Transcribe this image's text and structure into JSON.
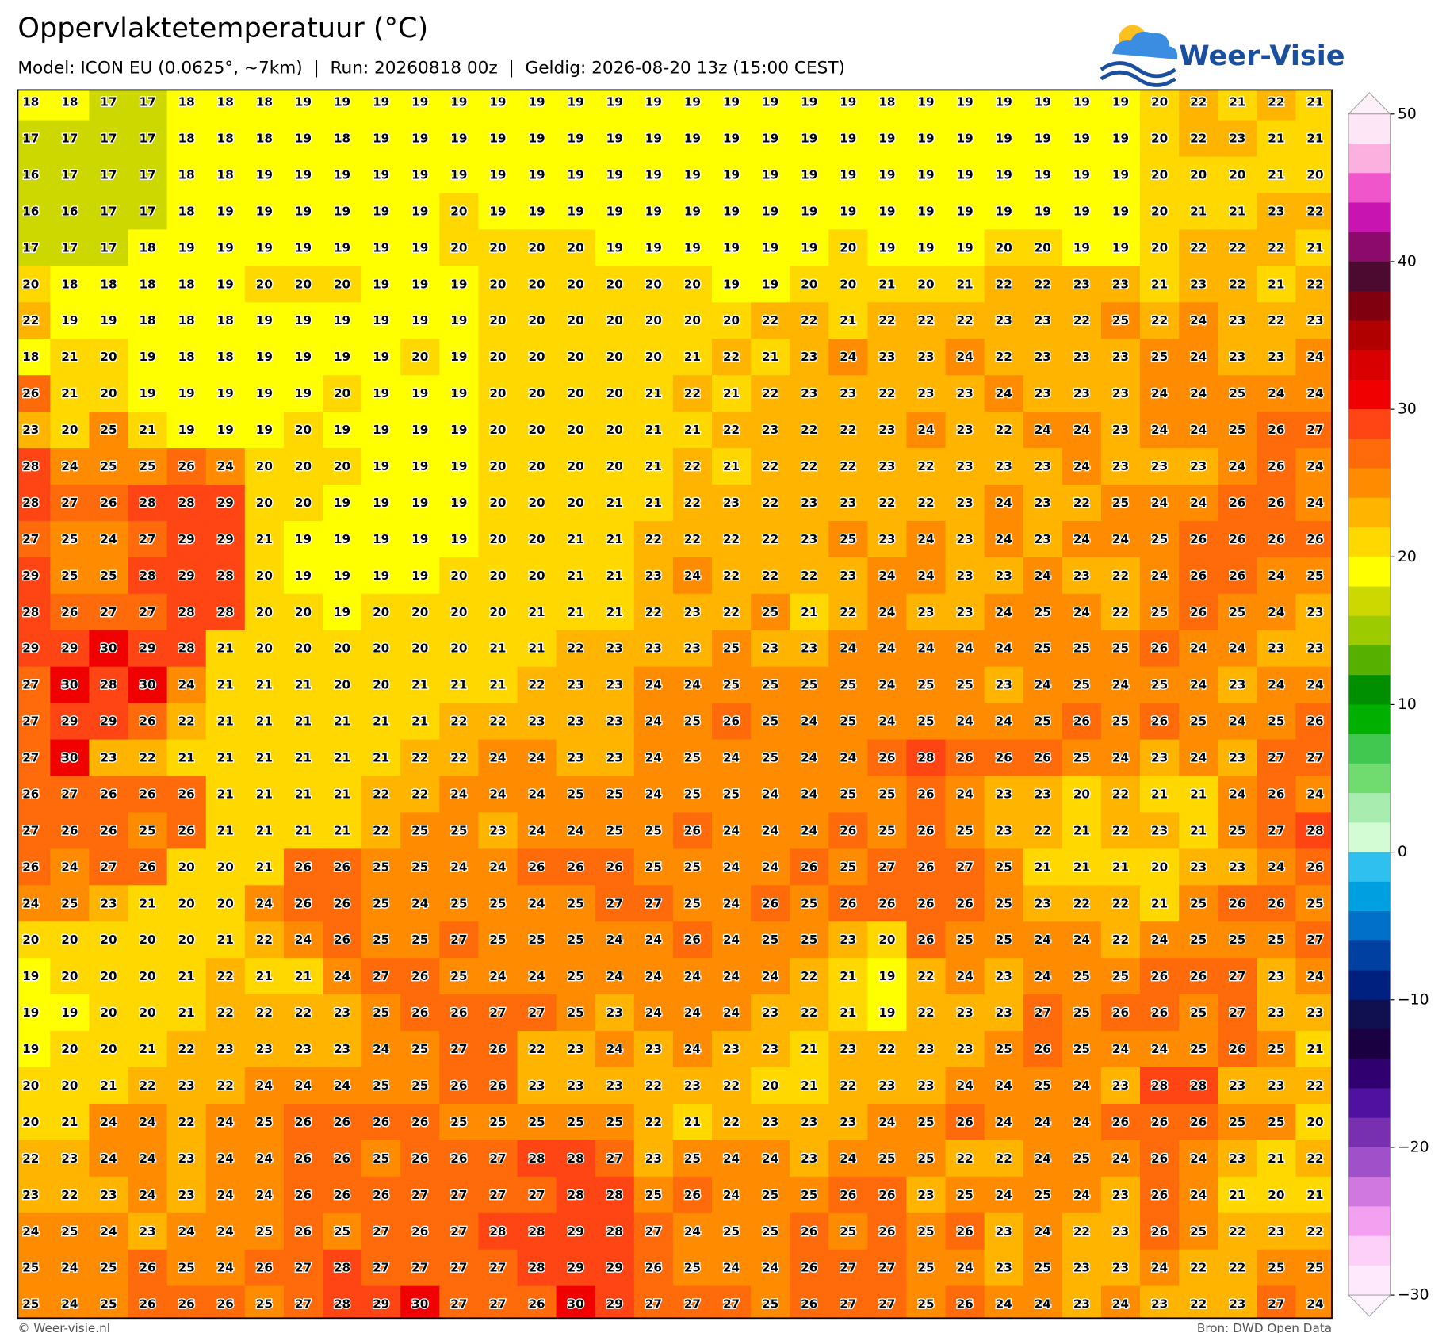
{
  "header": {
    "title": "Oppervlaktetemperatuur (°C)",
    "subtitle": "Model: ICON EU (0.0625°, ~7km)  |  Run: 20260818 00z  |  Geldig: 2026-08-20 13z (15:00 CEST)",
    "logo": "Weer-Visie"
  },
  "grid": {
    "rows": [
      [
        18,
        18,
        17,
        17,
        18,
        18,
        18,
        19,
        19,
        19,
        19,
        19,
        19,
        19,
        19,
        19,
        19,
        19,
        19,
        19,
        19,
        19,
        18,
        19,
        19,
        19,
        19,
        19,
        19,
        20,
        22,
        21,
        22,
        21
      ],
      [
        17,
        17,
        17,
        17,
        18,
        18,
        18,
        19,
        18,
        19,
        19,
        19,
        19,
        19,
        19,
        19,
        19,
        19,
        19,
        19,
        19,
        19,
        19,
        19,
        19,
        19,
        19,
        19,
        19,
        20,
        22,
        23,
        21,
        21
      ],
      [
        16,
        17,
        17,
        17,
        18,
        18,
        19,
        19,
        19,
        19,
        19,
        19,
        19,
        19,
        19,
        19,
        19,
        19,
        19,
        19,
        19,
        19,
        19,
        19,
        19,
        19,
        19,
        19,
        19,
        20,
        20,
        20,
        21,
        20
      ],
      [
        16,
        16,
        17,
        17,
        18,
        19,
        19,
        19,
        19,
        19,
        19,
        20,
        19,
        19,
        19,
        19,
        19,
        19,
        19,
        19,
        19,
        19,
        19,
        19,
        19,
        19,
        19,
        19,
        19,
        20,
        21,
        21,
        23,
        22
      ],
      [
        17,
        17,
        17,
        18,
        19,
        19,
        19,
        19,
        19,
        19,
        19,
        20,
        20,
        20,
        20,
        19,
        19,
        19,
        19,
        19,
        19,
        20,
        19,
        19,
        19,
        20,
        20,
        19,
        19,
        20,
        22,
        22,
        22,
        21
      ],
      [
        20,
        18,
        18,
        18,
        18,
        19,
        20,
        20,
        20,
        19,
        19,
        19,
        20,
        20,
        20,
        20,
        20,
        20,
        19,
        19,
        20,
        20,
        21,
        20,
        21,
        22,
        22,
        23,
        23,
        21,
        23,
        22,
        21,
        22
      ],
      [
        22,
        19,
        19,
        18,
        18,
        18,
        19,
        19,
        19,
        19,
        19,
        19,
        20,
        20,
        20,
        20,
        20,
        20,
        20,
        22,
        22,
        21,
        22,
        22,
        22,
        23,
        23,
        22,
        25,
        22,
        24,
        23,
        22,
        23
      ],
      [
        18,
        21,
        20,
        19,
        18,
        18,
        19,
        19,
        19,
        19,
        20,
        19,
        20,
        20,
        20,
        20,
        20,
        21,
        22,
        21,
        23,
        24,
        23,
        23,
        24,
        22,
        23,
        23,
        23,
        25,
        24,
        23,
        23,
        24
      ],
      [
        26,
        21,
        20,
        19,
        19,
        19,
        19,
        19,
        20,
        19,
        19,
        19,
        20,
        20,
        20,
        20,
        21,
        22,
        21,
        22,
        23,
        23,
        22,
        23,
        23,
        24,
        23,
        23,
        23,
        24,
        24,
        25,
        24,
        24
      ],
      [
        23,
        20,
        25,
        21,
        19,
        19,
        19,
        20,
        19,
        19,
        19,
        19,
        20,
        20,
        20,
        20,
        21,
        21,
        22,
        23,
        22,
        22,
        23,
        24,
        23,
        22,
        24,
        24,
        23,
        24,
        24,
        25,
        26,
        27
      ],
      [
        28,
        24,
        25,
        25,
        26,
        24,
        20,
        20,
        20,
        19,
        19,
        19,
        20,
        20,
        20,
        20,
        21,
        22,
        21,
        22,
        22,
        22,
        23,
        22,
        23,
        23,
        23,
        24,
        23,
        23,
        23,
        24,
        26,
        24
      ],
      [
        28,
        27,
        26,
        28,
        28,
        29,
        20,
        20,
        19,
        19,
        19,
        19,
        20,
        20,
        20,
        21,
        21,
        22,
        23,
        22,
        23,
        23,
        22,
        22,
        23,
        24,
        23,
        22,
        25,
        24,
        24,
        26,
        26,
        24
      ],
      [
        27,
        25,
        24,
        27,
        29,
        29,
        21,
        19,
        19,
        19,
        19,
        19,
        20,
        20,
        21,
        21,
        22,
        22,
        22,
        22,
        23,
        25,
        23,
        24,
        23,
        24,
        23,
        24,
        24,
        25,
        26,
        26,
        26,
        26
      ],
      [
        29,
        25,
        25,
        28,
        29,
        28,
        20,
        19,
        19,
        19,
        19,
        20,
        20,
        20,
        21,
        21,
        23,
        24,
        22,
        22,
        22,
        23,
        24,
        24,
        23,
        23,
        24,
        23,
        22,
        24,
        26,
        26,
        24,
        25
      ],
      [
        28,
        26,
        27,
        27,
        28,
        28,
        20,
        20,
        19,
        20,
        20,
        20,
        20,
        21,
        21,
        21,
        22,
        23,
        22,
        25,
        21,
        22,
        24,
        23,
        23,
        24,
        25,
        24,
        22,
        25,
        26,
        25,
        24,
        23
      ],
      [
        29,
        29,
        30,
        29,
        28,
        21,
        20,
        20,
        20,
        20,
        20,
        20,
        21,
        21,
        22,
        23,
        23,
        23,
        25,
        23,
        23,
        24,
        24,
        24,
        24,
        24,
        25,
        25,
        25,
        26,
        24,
        24,
        23,
        23
      ],
      [
        27,
        30,
        28,
        30,
        24,
        21,
        21,
        21,
        20,
        20,
        21,
        21,
        21,
        22,
        23,
        23,
        24,
        24,
        25,
        25,
        25,
        25,
        24,
        25,
        25,
        23,
        24,
        25,
        24,
        25,
        24,
        23,
        24,
        24
      ],
      [
        27,
        29,
        29,
        26,
        22,
        21,
        21,
        21,
        21,
        21,
        21,
        22,
        22,
        23,
        23,
        23,
        24,
        25,
        26,
        25,
        24,
        25,
        24,
        25,
        24,
        24,
        25,
        26,
        25,
        26,
        25,
        24,
        25,
        26
      ],
      [
        27,
        30,
        23,
        22,
        21,
        21,
        21,
        21,
        21,
        21,
        22,
        22,
        24,
        24,
        23,
        23,
        24,
        25,
        24,
        25,
        24,
        24,
        26,
        28,
        26,
        26,
        26,
        25,
        24,
        23,
        24,
        23,
        27,
        27
      ],
      [
        26,
        27,
        26,
        26,
        26,
        21,
        21,
        21,
        21,
        22,
        22,
        24,
        24,
        24,
        25,
        25,
        24,
        25,
        25,
        24,
        24,
        25,
        25,
        26,
        24,
        23,
        23,
        20,
        22,
        21,
        21,
        24,
        26,
        24
      ],
      [
        27,
        26,
        26,
        25,
        26,
        21,
        21,
        21,
        21,
        22,
        25,
        25,
        23,
        24,
        24,
        25,
        25,
        26,
        24,
        24,
        24,
        26,
        25,
        26,
        25,
        23,
        22,
        21,
        22,
        23,
        21,
        25,
        27,
        28
      ],
      [
        26,
        24,
        27,
        26,
        20,
        20,
        21,
        26,
        26,
        25,
        25,
        24,
        24,
        26,
        26,
        26,
        25,
        25,
        24,
        24,
        26,
        25,
        27,
        26,
        27,
        25,
        21,
        21,
        21,
        20,
        23,
        23,
        24,
        26
      ],
      [
        24,
        25,
        23,
        21,
        20,
        20,
        24,
        26,
        26,
        25,
        24,
        25,
        25,
        24,
        25,
        27,
        27,
        25,
        24,
        26,
        25,
        26,
        26,
        26,
        26,
        25,
        23,
        22,
        22,
        21,
        25,
        26,
        26,
        25
      ],
      [
        20,
        20,
        20,
        20,
        20,
        21,
        22,
        24,
        26,
        25,
        25,
        27,
        25,
        25,
        25,
        24,
        24,
        26,
        24,
        25,
        25,
        23,
        20,
        26,
        25,
        25,
        24,
        24,
        22,
        24,
        25,
        25,
        25,
        27
      ],
      [
        19,
        20,
        20,
        20,
        21,
        22,
        21,
        21,
        24,
        27,
        26,
        25,
        24,
        24,
        25,
        24,
        24,
        24,
        24,
        24,
        22,
        21,
        19,
        22,
        24,
        23,
        24,
        25,
        25,
        26,
        26,
        27,
        23,
        24
      ],
      [
        19,
        19,
        20,
        20,
        21,
        22,
        22,
        22,
        23,
        25,
        26,
        26,
        27,
        27,
        25,
        23,
        24,
        24,
        24,
        23,
        22,
        21,
        19,
        22,
        23,
        23,
        27,
        25,
        26,
        26,
        25,
        27,
        23,
        23
      ],
      [
        19,
        20,
        20,
        21,
        22,
        23,
        23,
        23,
        23,
        24,
        25,
        27,
        26,
        22,
        23,
        24,
        23,
        24,
        23,
        23,
        21,
        23,
        22,
        23,
        23,
        25,
        26,
        25,
        24,
        24,
        25,
        26,
        25,
        21
      ],
      [
        20,
        20,
        21,
        22,
        23,
        22,
        24,
        24,
        24,
        25,
        25,
        26,
        26,
        23,
        23,
        23,
        22,
        23,
        22,
        20,
        21,
        22,
        23,
        23,
        24,
        24,
        25,
        24,
        23,
        28,
        28,
        23,
        23,
        22
      ],
      [
        20,
        21,
        24,
        24,
        22,
        24,
        25,
        26,
        26,
        26,
        26,
        25,
        25,
        25,
        25,
        25,
        22,
        21,
        22,
        23,
        23,
        23,
        24,
        25,
        26,
        24,
        24,
        24,
        26,
        26,
        26,
        25,
        25,
        20
      ],
      [
        22,
        23,
        24,
        24,
        23,
        24,
        24,
        26,
        26,
        25,
        26,
        26,
        27,
        28,
        28,
        27,
        23,
        25,
        24,
        24,
        23,
        24,
        25,
        25,
        22,
        22,
        24,
        25,
        24,
        26,
        24,
        23,
        21,
        22
      ],
      [
        23,
        22,
        23,
        24,
        23,
        24,
        24,
        26,
        26,
        26,
        27,
        27,
        27,
        27,
        28,
        28,
        25,
        26,
        24,
        25,
        25,
        26,
        26,
        23,
        25,
        24,
        25,
        24,
        23,
        26,
        24,
        21,
        20,
        21
      ],
      [
        24,
        25,
        24,
        23,
        24,
        24,
        25,
        26,
        25,
        27,
        26,
        27,
        28,
        28,
        29,
        28,
        27,
        24,
        25,
        25,
        26,
        25,
        26,
        25,
        26,
        23,
        24,
        22,
        23,
        26,
        25,
        22,
        23,
        22
      ],
      [
        25,
        24,
        25,
        26,
        25,
        24,
        26,
        27,
        28,
        27,
        27,
        27,
        27,
        28,
        29,
        29,
        26,
        25,
        24,
        24,
        26,
        27,
        27,
        25,
        24,
        23,
        25,
        23,
        23,
        24,
        22,
        22,
        25,
        25
      ],
      [
        25,
        24,
        25,
        26,
        26,
        26,
        25,
        27,
        28,
        29,
        30,
        27,
        27,
        26,
        30,
        29,
        27,
        27,
        27,
        25,
        26,
        27,
        27,
        25,
        26,
        24,
        24,
        23,
        24,
        23,
        22,
        23,
        27,
        24
      ]
    ]
  },
  "colorbar": {
    "lim": [
      -30,
      50
    ],
    "ticks": [
      50,
      40,
      30,
      20,
      10,
      0,
      {
        "value": -10,
        "label": "−10"
      },
      {
        "value": -20,
        "label": "−20"
      },
      {
        "value": -30,
        "label": "−30"
      }
    ],
    "colors": [
      "#fde6f6",
      "#fbb0e0",
      "#f055cc",
      "#c814b0",
      "#8b0a6c",
      "#4d0a30",
      "#800010",
      "#b00000",
      "#d80000",
      "#f00000",
      "#ff4514",
      "#ff6a0a",
      "#ff8c00",
      "#ffb400",
      "#ffd800",
      "#ffff00",
      "#ccd800",
      "#9ccc00",
      "#55b000",
      "#008f00",
      "#00b000",
      "#40c850",
      "#70dc70",
      "#a8ecb0",
      "#d4fcd4",
      "#30c0f0",
      "#00a0e0",
      "#0070c8",
      "#0040a0",
      "#002080",
      "#101050",
      "#1a0040",
      "#300070",
      "#5010a0",
      "#7830b0",
      "#a050c8",
      "#d078e0",
      "#f4a0f0",
      "#fcd0f8",
      "#fde8fc"
    ]
  },
  "footer": {
    "left": "© Weer-visie.nl",
    "right": "Bron: DWD Open Data"
  }
}
